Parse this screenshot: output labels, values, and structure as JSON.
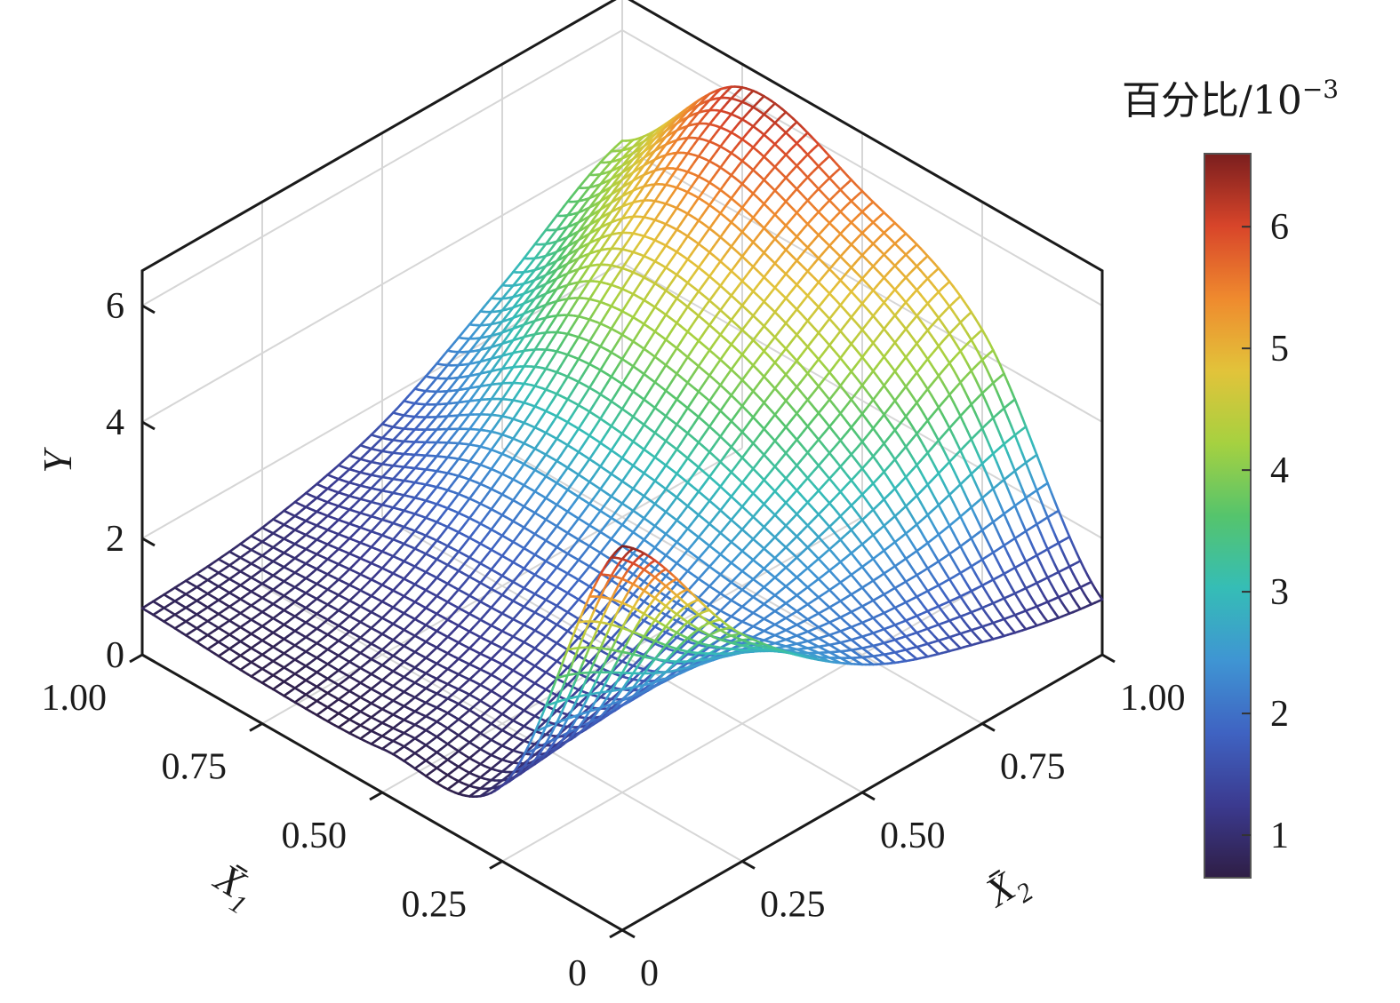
{
  "chart_data": {
    "type": "surface3d",
    "x_axis": {
      "label": "X̄",
      "subscript": "1",
      "ticks": [
        "1.00",
        "0.75",
        "0.50",
        "0.25",
        "0"
      ],
      "range": [
        0,
        1
      ]
    },
    "y_axis": {
      "label": "X̄",
      "subscript": "2",
      "ticks": [
        "1.00",
        "0.75",
        "0.50",
        "0.25",
        "0"
      ],
      "range": [
        0,
        1
      ]
    },
    "z_axis": {
      "label": "Y",
      "ticks": [
        "0",
        "2",
        "4",
        "6"
      ],
      "range": [
        0,
        6.6
      ]
    },
    "colorbar": {
      "title": "百分比/10",
      "title_sup": "−3",
      "ticks": [
        "1",
        "2",
        "3",
        "4",
        "5",
        "6"
      ],
      "range": [
        0.65,
        6.6
      ],
      "colormap": [
        "#2f1e45",
        "#3b3a8f",
        "#3f63c2",
        "#3f95d3",
        "#35bdb6",
        "#55c46c",
        "#a6d140",
        "#e2c33a",
        "#ef8a2e",
        "#d8452a",
        "#7a1e1e"
      ]
    },
    "surface_grid": {
      "x1": [
        0,
        0.25,
        0.5,
        0.75,
        1
      ],
      "x2": [
        0,
        0.25,
        0.5,
        0.75,
        1
      ],
      "Y_rows_by_x1": [
        [
          6.6,
          3.9,
          2.2,
          1.4,
          0.95
        ],
        [
          1.3,
          1.6,
          2.3,
          3.2,
          4.4
        ],
        [
          0.75,
          1.3,
          2.6,
          4.4,
          5.6
        ],
        [
          0.7,
          1.2,
          2.6,
          4.6,
          6.2
        ],
        [
          0.8,
          1.0,
          1.6,
          2.8,
          4.1
        ]
      ]
    },
    "grid": true
  }
}
